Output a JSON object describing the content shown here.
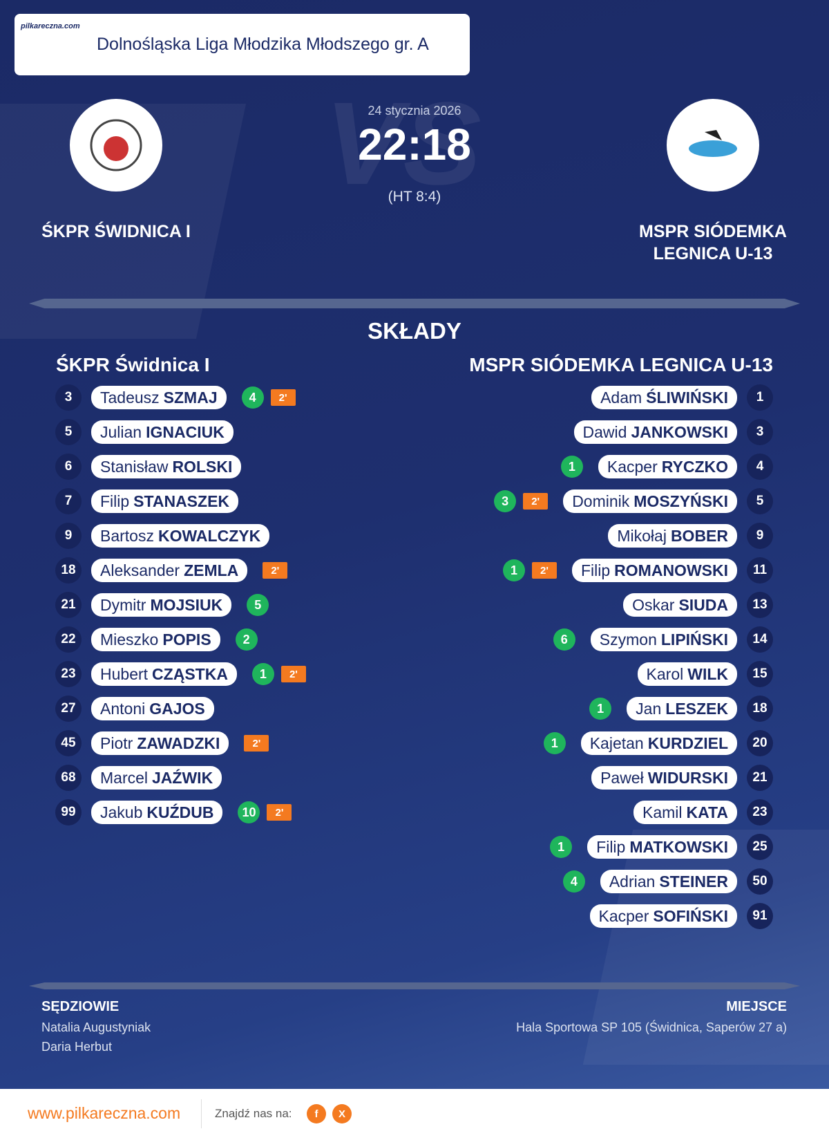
{
  "header": {
    "logo_text": "pilkareczna.com",
    "league": "Dolnośląska Liga Młodzika Młodszego gr. A"
  },
  "match": {
    "watermark": "VS",
    "date": "24 stycznia 2026",
    "score": "22:18",
    "half_time": "(HT 8:4)",
    "home_team": "ŚKPR ŚWIDNICA I",
    "away_team": "MSPR SIÓDEMKA LEGNICA U-13"
  },
  "lineups": {
    "title": "SKŁADY",
    "home": {
      "name": "ŚKPR Świdnica I",
      "players": [
        {
          "number": "3",
          "first": "Tadeusz",
          "last": "SZMAJ",
          "goals": "4",
          "penalty": "2'"
        },
        {
          "number": "5",
          "first": "Julian",
          "last": "IGNACIUK"
        },
        {
          "number": "6",
          "first": "Stanisław",
          "last": "ROLSKI"
        },
        {
          "number": "7",
          "first": "Filip",
          "last": "STANASZEK"
        },
        {
          "number": "9",
          "first": "Bartosz",
          "last": "KOWALCZYK"
        },
        {
          "number": "18",
          "first": "Aleksander",
          "last": "ZEMLA",
          "penalty": "2'"
        },
        {
          "number": "21",
          "first": "Dymitr",
          "last": "MOJSIUK",
          "goals": "5"
        },
        {
          "number": "22",
          "first": "Mieszko",
          "last": "POPIS",
          "goals": "2"
        },
        {
          "number": "23",
          "first": "Hubert",
          "last": "CZĄSTKA",
          "goals": "1",
          "penalty": "2'"
        },
        {
          "number": "27",
          "first": "Antoni",
          "last": "GAJOS"
        },
        {
          "number": "45",
          "first": "Piotr",
          "last": "ZAWADZKI",
          "penalty": "2'"
        },
        {
          "number": "68",
          "first": "Marcel",
          "last": "JAŹWIK"
        },
        {
          "number": "99",
          "first": "Jakub",
          "last": "KUŹDUB",
          "goals": "10",
          "penalty": "2'"
        }
      ]
    },
    "away": {
      "name": "MSPR SIÓDEMKA LEGNICA U-13",
      "players": [
        {
          "number": "1",
          "first": "Adam",
          "last": "ŚLIWIŃSKI"
        },
        {
          "number": "3",
          "first": "Dawid",
          "last": "JANKOWSKI"
        },
        {
          "number": "4",
          "first": "Kacper",
          "last": "RYCZKO",
          "goals": "1"
        },
        {
          "number": "5",
          "first": "Dominik",
          "last": "MOSZYŃSKI",
          "goals": "3",
          "penalty": "2'"
        },
        {
          "number": "9",
          "first": "Mikołaj",
          "last": "BOBER"
        },
        {
          "number": "11",
          "first": "Filip",
          "last": "ROMANOWSKI",
          "goals": "1",
          "penalty": "2'"
        },
        {
          "number": "13",
          "first": "Oskar",
          "last": "SIUDA"
        },
        {
          "number": "14",
          "first": "Szymon",
          "last": "LIPIŃSKI",
          "goals": "6"
        },
        {
          "number": "15",
          "first": "Karol",
          "last": "WILK"
        },
        {
          "number": "18",
          "first": "Jan",
          "last": "LESZEK",
          "goals": "1"
        },
        {
          "number": "20",
          "first": "Kajetan",
          "last": "KURDZIEL",
          "goals": "1"
        },
        {
          "number": "21",
          "first": "Paweł",
          "last": "WIDURSKI"
        },
        {
          "number": "23",
          "first": "Kamil",
          "last": "KATA"
        },
        {
          "number": "25",
          "first": "Filip",
          "last": "MATKOWSKI",
          "goals": "1"
        },
        {
          "number": "50",
          "first": "Adrian",
          "last": "STEINER",
          "goals": "4"
        },
        {
          "number": "91",
          "first": "Kacper",
          "last": "SOFIŃSKI"
        }
      ]
    }
  },
  "officials": {
    "title": "SĘDZIOWIE",
    "names": [
      "Natalia Augustyniak",
      "Daria Herbut"
    ]
  },
  "venue": {
    "title": "MIEJSCE",
    "text": "Hala Sportowa SP 105 (Świdnica, Saperów 27 a)"
  },
  "footer": {
    "url": "www.pilkareczna.com",
    "find_us": "Znajdź nas na:",
    "social": [
      "f",
      "X"
    ]
  }
}
